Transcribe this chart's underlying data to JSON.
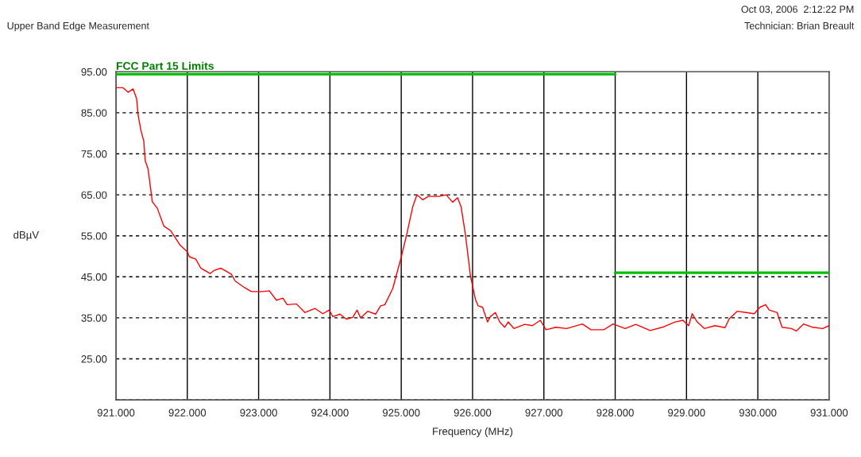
{
  "chart_data": {
    "type": "line",
    "xlabel": "Frequency (MHz)",
    "ylabel": "dBµV",
    "annotations": [
      "Upper Band Edge Measurement",
      "Oct 03, 2006  2:12:22 PM",
      "Technician: Brian Breault"
    ],
    "xlim": [
      921,
      931
    ],
    "ylim": [
      15,
      95
    ],
    "xticks": [
      {
        "value": 921,
        "label": "921.000"
      },
      {
        "value": 922,
        "label": "922.000"
      },
      {
        "value": 923,
        "label": "923.000"
      },
      {
        "value": 924,
        "label": "924.000"
      },
      {
        "value": 925,
        "label": "925.000"
      },
      {
        "value": 926,
        "label": "926.000"
      },
      {
        "value": 927,
        "label": "927.000"
      },
      {
        "value": 928,
        "label": "928.000"
      },
      {
        "value": 929,
        "label": "929.000"
      },
      {
        "value": 930,
        "label": "930.000"
      },
      {
        "value": 931,
        "label": "931.000"
      }
    ],
    "yticks": [
      {
        "value": 15,
        "label": null
      },
      {
        "value": 25,
        "label": "25.00"
      },
      {
        "value": 35,
        "label": "35.00"
      },
      {
        "value": 45,
        "label": "45.00"
      },
      {
        "value": 55,
        "label": "55.00"
      },
      {
        "value": 65,
        "label": "65.00"
      },
      {
        "value": 75,
        "label": "75.00"
      },
      {
        "value": 85,
        "label": "85.00"
      },
      {
        "value": 95,
        "label": "95.00"
      }
    ],
    "grid": true,
    "marker": "none",
    "line_style": "solid",
    "series": [
      {
        "color": "#ff0000",
        "x": [
          921.0,
          921.1,
          921.17,
          921.24,
          921.29,
          921.31,
          921.35,
          921.39,
          921.41,
          921.45,
          921.51,
          921.58,
          921.67,
          921.77,
          921.9,
          922.0,
          922.03,
          922.12,
          922.19,
          922.32,
          922.38,
          922.47,
          922.62,
          922.67,
          922.8,
          922.9,
          923.06,
          923.15,
          923.25,
          923.34,
          923.4,
          923.53,
          923.65,
          923.79,
          923.9,
          923.99,
          924.04,
          924.14,
          924.23,
          924.32,
          924.38,
          924.43,
          924.53,
          924.64,
          924.71,
          924.77,
          924.88,
          924.93,
          925.0,
          925.08,
          925.16,
          925.22,
          925.3,
          925.38,
          925.53,
          925.63,
          925.72,
          925.79,
          925.84,
          925.9,
          925.97,
          926.04,
          926.08,
          926.14,
          926.21,
          926.25,
          926.32,
          926.38,
          926.45,
          926.5,
          926.58,
          926.73,
          926.84,
          926.95,
          927.03,
          927.17,
          927.32,
          927.54,
          927.66,
          927.84,
          927.97,
          928.14,
          928.29,
          928.49,
          928.66,
          928.84,
          928.95,
          929.03,
          929.08,
          929.15,
          929.25,
          929.4,
          929.54,
          929.6,
          929.71,
          929.84,
          929.95,
          930.03,
          930.11,
          930.16,
          930.27,
          930.34,
          930.47,
          930.54,
          930.64,
          930.77,
          930.91,
          931.0
        ],
        "values": [
          91.1,
          91.1,
          90.0,
          90.8,
          88.4,
          84.5,
          80.7,
          78.1,
          73.3,
          71.3,
          63.3,
          61.7,
          57.4,
          56.2,
          52.7,
          51.1,
          49.9,
          49.3,
          47.1,
          45.8,
          46.6,
          47.1,
          45.6,
          44.0,
          42.4,
          41.4,
          41.4,
          41.6,
          39.3,
          39.8,
          38.2,
          38.4,
          36.3,
          37.3,
          36.0,
          36.9,
          35.3,
          35.9,
          34.7,
          35.1,
          36.9,
          35.0,
          36.6,
          35.9,
          37.9,
          38.2,
          42.1,
          45.3,
          49.8,
          55.6,
          62.0,
          65.0,
          63.8,
          64.6,
          64.6,
          65.0,
          63.2,
          64.3,
          62.0,
          55.3,
          45.3,
          39.5,
          37.9,
          37.6,
          34.0,
          35.3,
          36.3,
          34.0,
          32.7,
          34.0,
          32.4,
          33.4,
          33.1,
          34.4,
          32.1,
          32.7,
          32.4,
          33.5,
          32.1,
          32.1,
          33.5,
          32.4,
          33.4,
          31.9,
          32.7,
          34.0,
          34.4,
          33.1,
          36.0,
          34.0,
          32.4,
          33.1,
          32.6,
          34.8,
          36.6,
          36.3,
          36.0,
          37.6,
          38.2,
          36.9,
          36.3,
          32.7,
          32.4,
          31.8,
          33.5,
          32.7,
          32.4,
          33.1
        ]
      },
      {
        "name": "FCC Part 15 Limits",
        "color": "#00c000",
        "x": [
          921,
          928
        ],
        "values": [
          94.4,
          94.4
        ]
      },
      {
        "color": "#00c000",
        "x": [
          928,
          931
        ],
        "values": [
          46,
          46
        ]
      }
    ]
  }
}
